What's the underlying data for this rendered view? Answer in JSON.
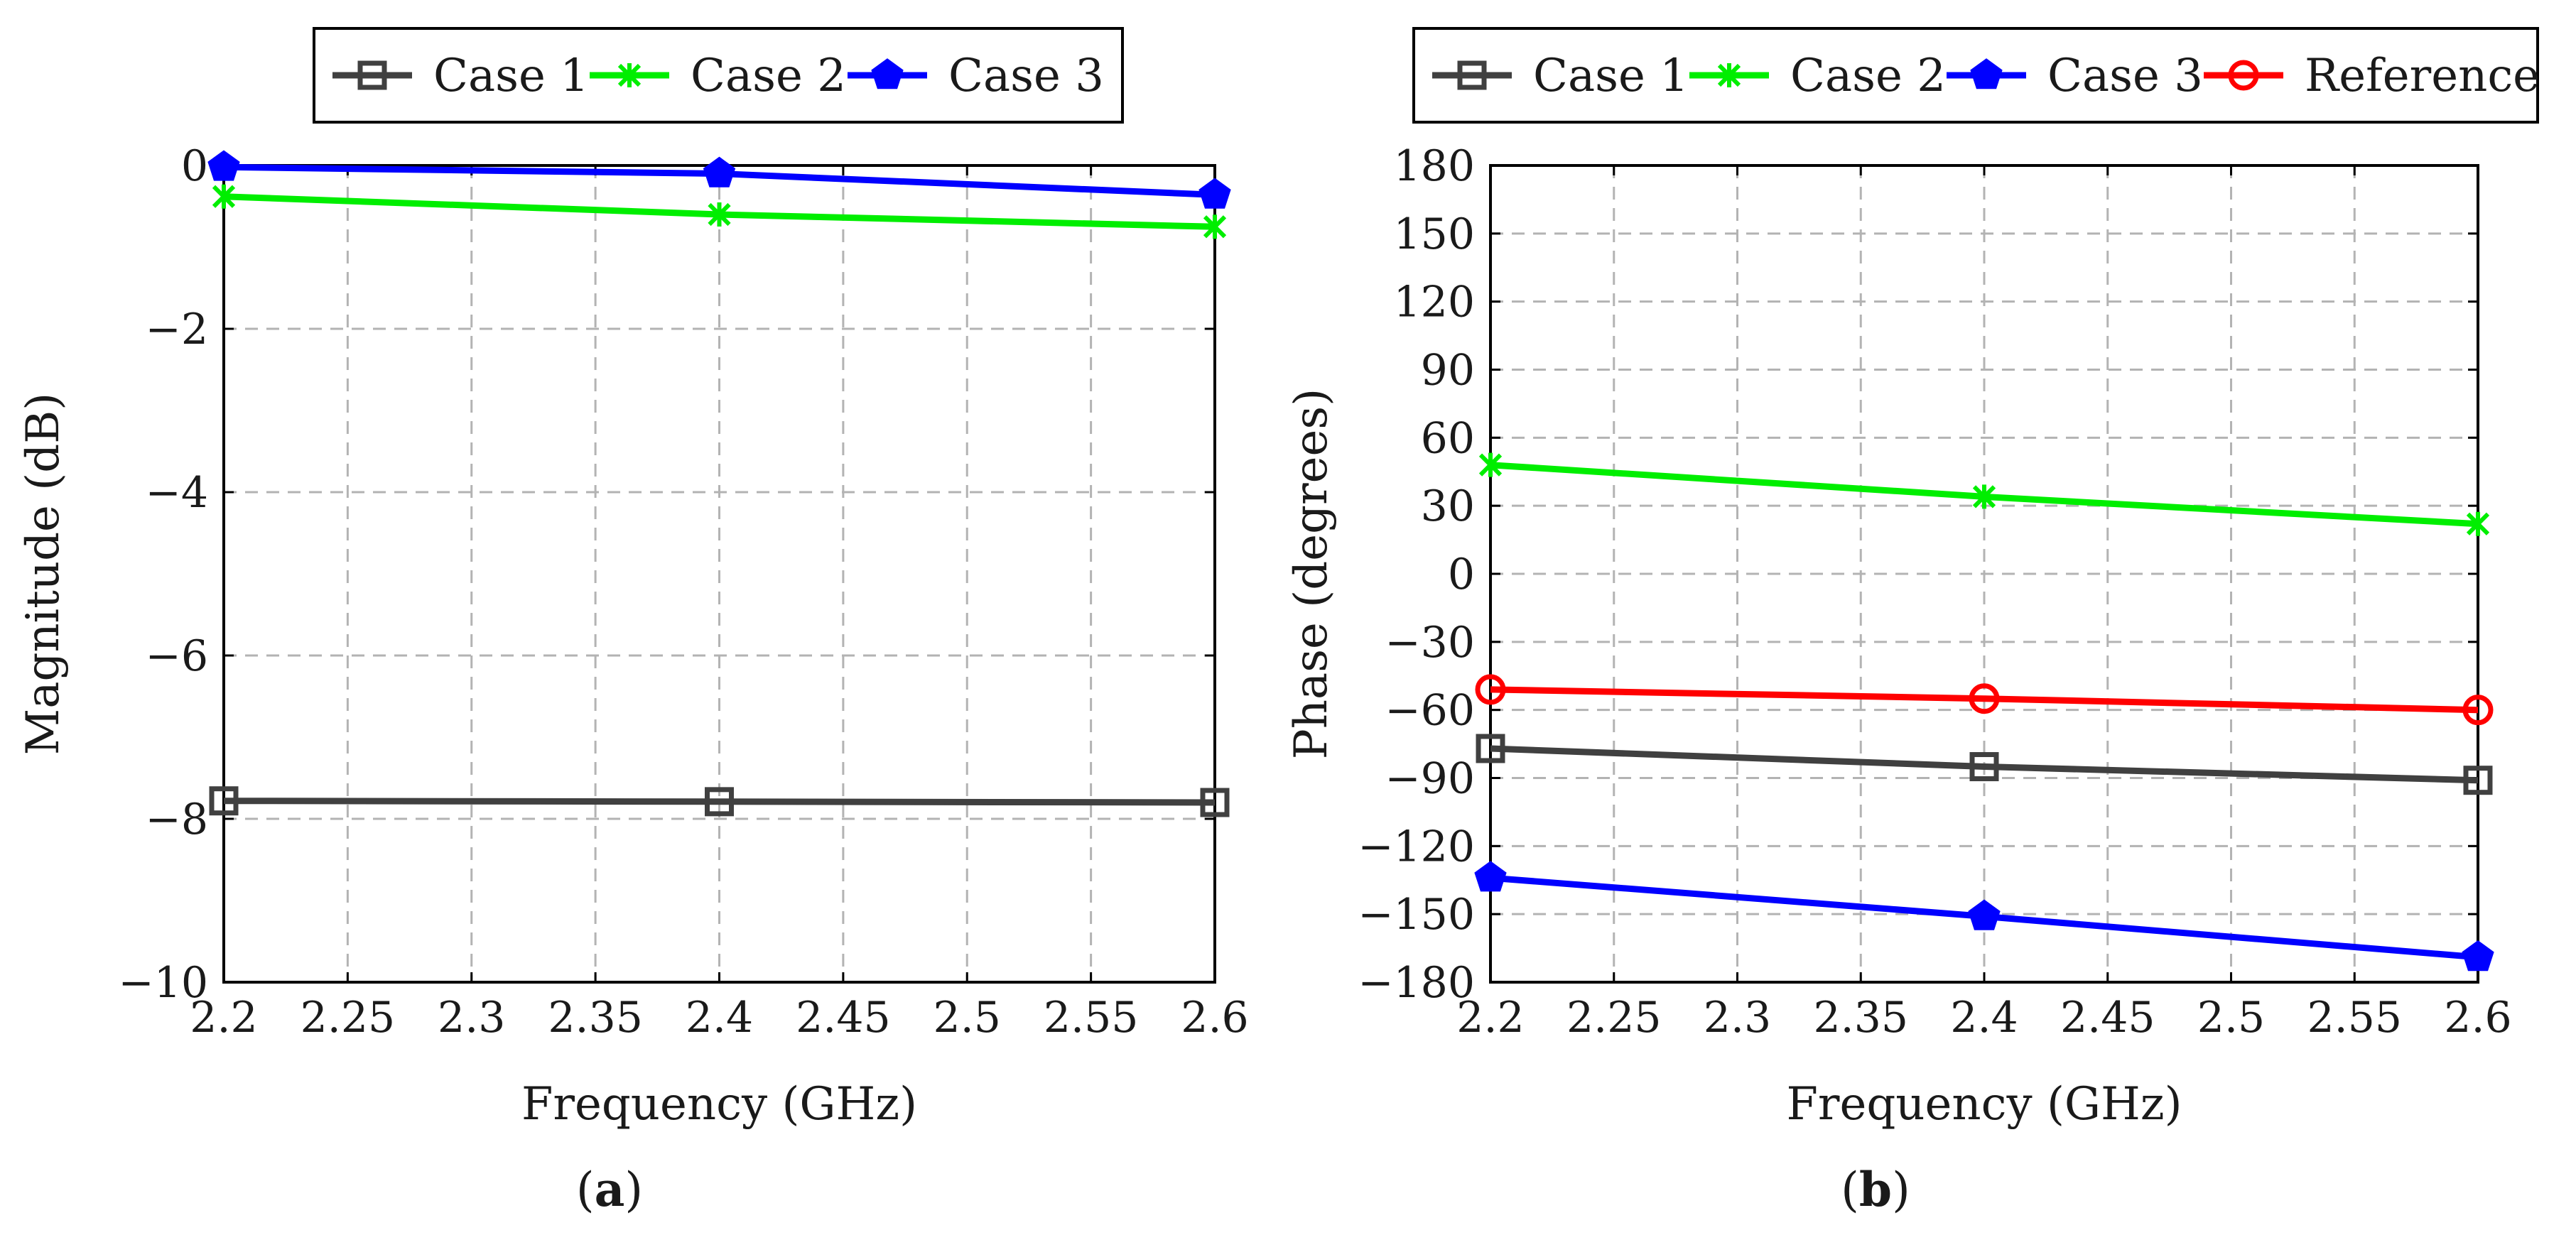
{
  "chart_data": [
    {
      "type": "line",
      "id": "a",
      "caption_open": "(",
      "caption_letter": "a",
      "caption_close": ")",
      "title": "",
      "xlabel": "Frequency (GHz)",
      "ylabel": "Magnitude (dB)",
      "xlim": [
        2.2,
        2.6
      ],
      "ylim": [
        -10,
        0
      ],
      "x_ticks": [
        "2.2",
        "2.25",
        "2.3",
        "2.35",
        "2.4",
        "2.45",
        "2.5",
        "2.55",
        "2.6"
      ],
      "y_ticks": [
        "−10",
        "−8",
        "−6",
        "−4",
        "−2",
        "0"
      ],
      "grid": true,
      "legend_position": "top-center",
      "series": [
        {
          "name": "Case 1",
          "color": "#404040",
          "marker": "square-open",
          "x": [
            2.2,
            2.4,
            2.6
          ],
          "values": [
            -7.78,
            -7.79,
            -7.8
          ]
        },
        {
          "name": "Case 2",
          "color": "#00ee00",
          "marker": "star",
          "x": [
            2.2,
            2.4,
            2.6
          ],
          "values": [
            -0.38,
            -0.6,
            -0.75
          ]
        },
        {
          "name": "Case 3",
          "color": "#0000ff",
          "marker": "pentagon",
          "x": [
            2.2,
            2.4,
            2.6
          ],
          "values": [
            -0.02,
            -0.1,
            -0.36
          ]
        }
      ]
    },
    {
      "type": "line",
      "id": "b",
      "caption_open": "(",
      "caption_letter": "b",
      "caption_close": ")",
      "title": "",
      "xlabel": "Frequency (GHz)",
      "ylabel": "Phase (degrees)",
      "xlim": [
        2.2,
        2.6
      ],
      "ylim": [
        -180,
        180
      ],
      "x_ticks": [
        "2.2",
        "2.25",
        "2.3",
        "2.35",
        "2.4",
        "2.45",
        "2.5",
        "2.55",
        "2.6"
      ],
      "y_ticks": [
        "−180",
        "−150",
        "−120",
        "−90",
        "−60",
        "−30",
        "0",
        "30",
        "60",
        "90",
        "120",
        "150",
        "180"
      ],
      "grid": true,
      "legend_position": "top-center",
      "series": [
        {
          "name": "Case 1",
          "color": "#404040",
          "marker": "square-open",
          "x": [
            2.2,
            2.4,
            2.6
          ],
          "values": [
            -77,
            -85,
            -91
          ]
        },
        {
          "name": "Case 2",
          "color": "#00ee00",
          "marker": "star",
          "x": [
            2.2,
            2.4,
            2.6
          ],
          "values": [
            48,
            34,
            22
          ]
        },
        {
          "name": "Case 3",
          "color": "#0000ff",
          "marker": "pentagon",
          "x": [
            2.2,
            2.4,
            2.6
          ],
          "values": [
            -134,
            -151,
            -169
          ]
        },
        {
          "name": "Reference",
          "color": "#ff0000",
          "marker": "circle-open",
          "x": [
            2.2,
            2.4,
            2.6
          ],
          "values": [
            -51,
            -55,
            -60
          ]
        }
      ]
    }
  ]
}
